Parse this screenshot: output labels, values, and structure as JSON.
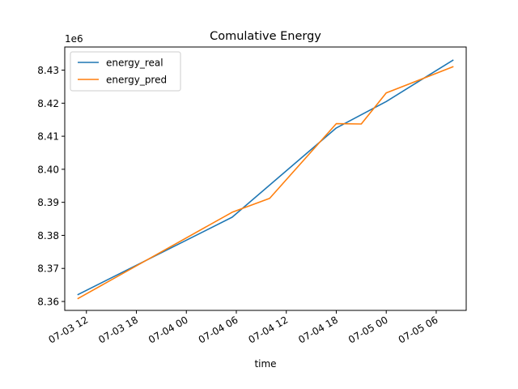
{
  "chart_data": {
    "type": "line",
    "title": "Comulative Energy",
    "xlabel": "time",
    "ylabel": "",
    "y_offset_label": "1e6",
    "y_scale": 1000000,
    "x_range": [
      "2018-07-03 09:24",
      "2018-07-05 09:36"
    ],
    "ylim": [
      8357300,
      8437000
    ],
    "x_ticks": [
      {
        "t": "2018-07-03 12:00",
        "label": "07-03 12"
      },
      {
        "t": "2018-07-03 18:00",
        "label": "07-03 18"
      },
      {
        "t": "2018-07-04 00:00",
        "label": "07-04 00"
      },
      {
        "t": "2018-07-04 06:00",
        "label": "07-04 06"
      },
      {
        "t": "2018-07-04 12:00",
        "label": "07-04 12"
      },
      {
        "t": "2018-07-04 18:00",
        "label": "07-04 18"
      },
      {
        "t": "2018-07-05 00:00",
        "label": "07-05 00"
      },
      {
        "t": "2018-07-05 06:00",
        "label": "07-05 06"
      }
    ],
    "y_ticks": [
      {
        "v": 8360000,
        "label": "8.36"
      },
      {
        "v": 8370000,
        "label": "8.37"
      },
      {
        "v": 8380000,
        "label": "8.38"
      },
      {
        "v": 8390000,
        "label": "8.39"
      },
      {
        "v": 8400000,
        "label": "8.40"
      },
      {
        "v": 8410000,
        "label": "8.41"
      },
      {
        "v": 8420000,
        "label": "8.42"
      },
      {
        "v": 8430000,
        "label": "8.43"
      }
    ],
    "legend_position": "upper-left",
    "grid": false,
    "series": [
      {
        "name": "energy_real",
        "color": "#1f77b4",
        "x": [
          "2018-07-03 11:00",
          "2018-07-04 05:30",
          "2018-07-04 18:00",
          "2018-07-05 00:00",
          "2018-07-05 08:00"
        ],
        "y": [
          8362100,
          8385500,
          8412500,
          8420500,
          8433000
        ]
      },
      {
        "name": "energy_pred",
        "color": "#ff7f0e",
        "x": [
          "2018-07-03 11:00",
          "2018-07-04 05:30",
          "2018-07-04 10:00",
          "2018-07-04 18:00",
          "2018-07-04 21:00",
          "2018-07-05 00:00",
          "2018-07-05 08:00"
        ],
        "y": [
          8360900,
          8387000,
          8391200,
          8413800,
          8413700,
          8423100,
          8431000
        ]
      }
    ]
  }
}
